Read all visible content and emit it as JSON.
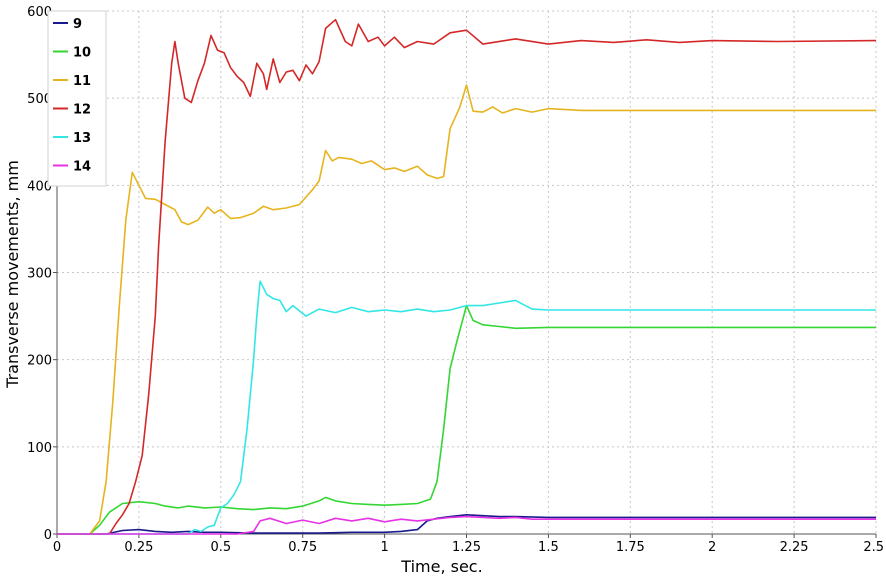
{
  "chart_data": {
    "type": "line",
    "title": "",
    "xlabel": "Time, sec.",
    "ylabel": "Transverse movements, mm",
    "xlim": [
      0,
      2.5
    ],
    "ylim": [
      0,
      600
    ],
    "x_ticks": [
      0,
      0.25,
      0.5,
      0.75,
      1,
      1.25,
      1.5,
      1.75,
      2,
      2.25,
      2.5
    ],
    "x_tick_labels": [
      "0",
      "0.25",
      "0.5",
      "0.75",
      "1",
      "1.25",
      "1.5",
      "1.75",
      "2",
      "2.25",
      "2.5"
    ],
    "y_ticks": [
      0,
      100,
      200,
      300,
      400,
      500,
      600
    ],
    "y_tick_labels": [
      "0",
      "100",
      "200",
      "300",
      "400",
      "500",
      "600"
    ],
    "grid": true,
    "legend_position": "top-left",
    "series": [
      {
        "name": "9",
        "color": "#1a1a8c",
        "points": [
          [
            0,
            0
          ],
          [
            0.15,
            0
          ],
          [
            0.2,
            4
          ],
          [
            0.25,
            5
          ],
          [
            0.3,
            3
          ],
          [
            0.35,
            2
          ],
          [
            0.4,
            3
          ],
          [
            0.45,
            2
          ],
          [
            0.5,
            2
          ],
          [
            0.6,
            1
          ],
          [
            0.7,
            1
          ],
          [
            0.8,
            1
          ],
          [
            0.9,
            2
          ],
          [
            1.0,
            2
          ],
          [
            1.05,
            3
          ],
          [
            1.1,
            5
          ],
          [
            1.13,
            15
          ],
          [
            1.16,
            18
          ],
          [
            1.2,
            20
          ],
          [
            1.25,
            22
          ],
          [
            1.3,
            21
          ],
          [
            1.35,
            20
          ],
          [
            1.4,
            20
          ],
          [
            1.5,
            19
          ],
          [
            1.7,
            19
          ],
          [
            2.0,
            19
          ],
          [
            2.5,
            19
          ]
        ]
      },
      {
        "name": "10",
        "color": "#33d633",
        "points": [
          [
            0,
            0
          ],
          [
            0.1,
            0
          ],
          [
            0.13,
            10
          ],
          [
            0.16,
            25
          ],
          [
            0.2,
            35
          ],
          [
            0.25,
            37
          ],
          [
            0.3,
            35
          ],
          [
            0.33,
            32
          ],
          [
            0.37,
            30
          ],
          [
            0.4,
            32
          ],
          [
            0.45,
            30
          ],
          [
            0.5,
            31
          ],
          [
            0.55,
            29
          ],
          [
            0.6,
            28
          ],
          [
            0.65,
            30
          ],
          [
            0.7,
            29
          ],
          [
            0.75,
            32
          ],
          [
            0.8,
            38
          ],
          [
            0.82,
            42
          ],
          [
            0.85,
            38
          ],
          [
            0.9,
            35
          ],
          [
            0.95,
            34
          ],
          [
            1.0,
            33
          ],
          [
            1.05,
            34
          ],
          [
            1.1,
            35
          ],
          [
            1.14,
            40
          ],
          [
            1.16,
            60
          ],
          [
            1.18,
            120
          ],
          [
            1.2,
            190
          ],
          [
            1.22,
            220
          ],
          [
            1.25,
            262
          ],
          [
            1.27,
            245
          ],
          [
            1.3,
            240
          ],
          [
            1.35,
            238
          ],
          [
            1.4,
            236
          ],
          [
            1.5,
            237
          ],
          [
            1.7,
            237
          ],
          [
            2.0,
            237
          ],
          [
            2.5,
            237
          ]
        ]
      },
      {
        "name": "11",
        "color": "#e6b41e",
        "points": [
          [
            0,
            0
          ],
          [
            0.1,
            0
          ],
          [
            0.13,
            15
          ],
          [
            0.15,
            60
          ],
          [
            0.17,
            150
          ],
          [
            0.19,
            260
          ],
          [
            0.21,
            360
          ],
          [
            0.23,
            415
          ],
          [
            0.25,
            400
          ],
          [
            0.27,
            385
          ],
          [
            0.3,
            384
          ],
          [
            0.33,
            378
          ],
          [
            0.36,
            372
          ],
          [
            0.38,
            358
          ],
          [
            0.4,
            355
          ],
          [
            0.43,
            360
          ],
          [
            0.46,
            375
          ],
          [
            0.48,
            368
          ],
          [
            0.5,
            372
          ],
          [
            0.53,
            362
          ],
          [
            0.56,
            363
          ],
          [
            0.6,
            368
          ],
          [
            0.63,
            376
          ],
          [
            0.66,
            372
          ],
          [
            0.7,
            374
          ],
          [
            0.74,
            378
          ],
          [
            0.78,
            395
          ],
          [
            0.8,
            405
          ],
          [
            0.82,
            440
          ],
          [
            0.84,
            428
          ],
          [
            0.86,
            432
          ],
          [
            0.9,
            430
          ],
          [
            0.93,
            425
          ],
          [
            0.96,
            428
          ],
          [
            1.0,
            418
          ],
          [
            1.03,
            420
          ],
          [
            1.06,
            416
          ],
          [
            1.1,
            422
          ],
          [
            1.13,
            412
          ],
          [
            1.16,
            408
          ],
          [
            1.18,
            410
          ],
          [
            1.2,
            465
          ],
          [
            1.23,
            490
          ],
          [
            1.25,
            515
          ],
          [
            1.27,
            485
          ],
          [
            1.3,
            484
          ],
          [
            1.33,
            490
          ],
          [
            1.36,
            483
          ],
          [
            1.4,
            488
          ],
          [
            1.45,
            484
          ],
          [
            1.5,
            488
          ],
          [
            1.6,
            486
          ],
          [
            1.8,
            486
          ],
          [
            2.0,
            486
          ],
          [
            2.2,
            486
          ],
          [
            2.5,
            486
          ]
        ]
      },
      {
        "name": "12",
        "color": "#d42828",
        "points": [
          [
            0,
            0
          ],
          [
            0.16,
            0
          ],
          [
            0.18,
            12
          ],
          [
            0.2,
            22
          ],
          [
            0.22,
            35
          ],
          [
            0.24,
            60
          ],
          [
            0.26,
            90
          ],
          [
            0.28,
            160
          ],
          [
            0.3,
            250
          ],
          [
            0.31,
            330
          ],
          [
            0.33,
            450
          ],
          [
            0.35,
            540
          ],
          [
            0.36,
            565
          ],
          [
            0.37,
            540
          ],
          [
            0.39,
            500
          ],
          [
            0.41,
            495
          ],
          [
            0.43,
            520
          ],
          [
            0.45,
            540
          ],
          [
            0.47,
            572
          ],
          [
            0.49,
            555
          ],
          [
            0.51,
            552
          ],
          [
            0.53,
            535
          ],
          [
            0.55,
            525
          ],
          [
            0.57,
            518
          ],
          [
            0.59,
            502
          ],
          [
            0.61,
            540
          ],
          [
            0.63,
            528
          ],
          [
            0.64,
            510
          ],
          [
            0.66,
            545
          ],
          [
            0.68,
            518
          ],
          [
            0.7,
            530
          ],
          [
            0.72,
            532
          ],
          [
            0.74,
            520
          ],
          [
            0.76,
            538
          ],
          [
            0.78,
            528
          ],
          [
            0.8,
            542
          ],
          [
            0.82,
            580
          ],
          [
            0.85,
            590
          ],
          [
            0.88,
            565
          ],
          [
            0.9,
            560
          ],
          [
            0.92,
            585
          ],
          [
            0.95,
            565
          ],
          [
            0.98,
            570
          ],
          [
            1.0,
            560
          ],
          [
            1.03,
            570
          ],
          [
            1.06,
            558
          ],
          [
            1.1,
            565
          ],
          [
            1.15,
            562
          ],
          [
            1.2,
            575
          ],
          [
            1.25,
            578
          ],
          [
            1.3,
            562
          ],
          [
            1.4,
            568
          ],
          [
            1.5,
            562
          ],
          [
            1.6,
            566
          ],
          [
            1.7,
            564
          ],
          [
            1.8,
            567
          ],
          [
            1.9,
            564
          ],
          [
            2.0,
            566
          ],
          [
            2.2,
            565
          ],
          [
            2.5,
            566
          ]
        ]
      },
      {
        "name": "13",
        "color": "#33e6e6",
        "points": [
          [
            0,
            0
          ],
          [
            0.4,
            0
          ],
          [
            0.42,
            5
          ],
          [
            0.44,
            3
          ],
          [
            0.46,
            8
          ],
          [
            0.48,
            10
          ],
          [
            0.5,
            30
          ],
          [
            0.52,
            35
          ],
          [
            0.54,
            45
          ],
          [
            0.56,
            60
          ],
          [
            0.58,
            120
          ],
          [
            0.6,
            200
          ],
          [
            0.61,
            250
          ],
          [
            0.62,
            290
          ],
          [
            0.64,
            275
          ],
          [
            0.66,
            270
          ],
          [
            0.68,
            268
          ],
          [
            0.7,
            255
          ],
          [
            0.72,
            262
          ],
          [
            0.74,
            256
          ],
          [
            0.76,
            250
          ],
          [
            0.8,
            258
          ],
          [
            0.85,
            254
          ],
          [
            0.9,
            260
          ],
          [
            0.95,
            255
          ],
          [
            1.0,
            257
          ],
          [
            1.05,
            255
          ],
          [
            1.1,
            258
          ],
          [
            1.15,
            255
          ],
          [
            1.2,
            257
          ],
          [
            1.25,
            262
          ],
          [
            1.3,
            262
          ],
          [
            1.35,
            265
          ],
          [
            1.4,
            268
          ],
          [
            1.45,
            258
          ],
          [
            1.5,
            257
          ],
          [
            1.7,
            257
          ],
          [
            2.0,
            257
          ],
          [
            2.5,
            257
          ]
        ]
      },
      {
        "name": "14",
        "color": "#e633e6",
        "points": [
          [
            0,
            0
          ],
          [
            0.55,
            0
          ],
          [
            0.6,
            3
          ],
          [
            0.62,
            15
          ],
          [
            0.65,
            18
          ],
          [
            0.7,
            12
          ],
          [
            0.75,
            16
          ],
          [
            0.8,
            12
          ],
          [
            0.85,
            18
          ],
          [
            0.9,
            15
          ],
          [
            0.95,
            18
          ],
          [
            1.0,
            14
          ],
          [
            1.05,
            17
          ],
          [
            1.1,
            15
          ],
          [
            1.15,
            17
          ],
          [
            1.2,
            19
          ],
          [
            1.25,
            20
          ],
          [
            1.3,
            19
          ],
          [
            1.35,
            18
          ],
          [
            1.4,
            19
          ],
          [
            1.45,
            17
          ],
          [
            1.5,
            17
          ],
          [
            1.7,
            17
          ],
          [
            2.0,
            17
          ],
          [
            2.5,
            17
          ]
        ]
      }
    ]
  }
}
